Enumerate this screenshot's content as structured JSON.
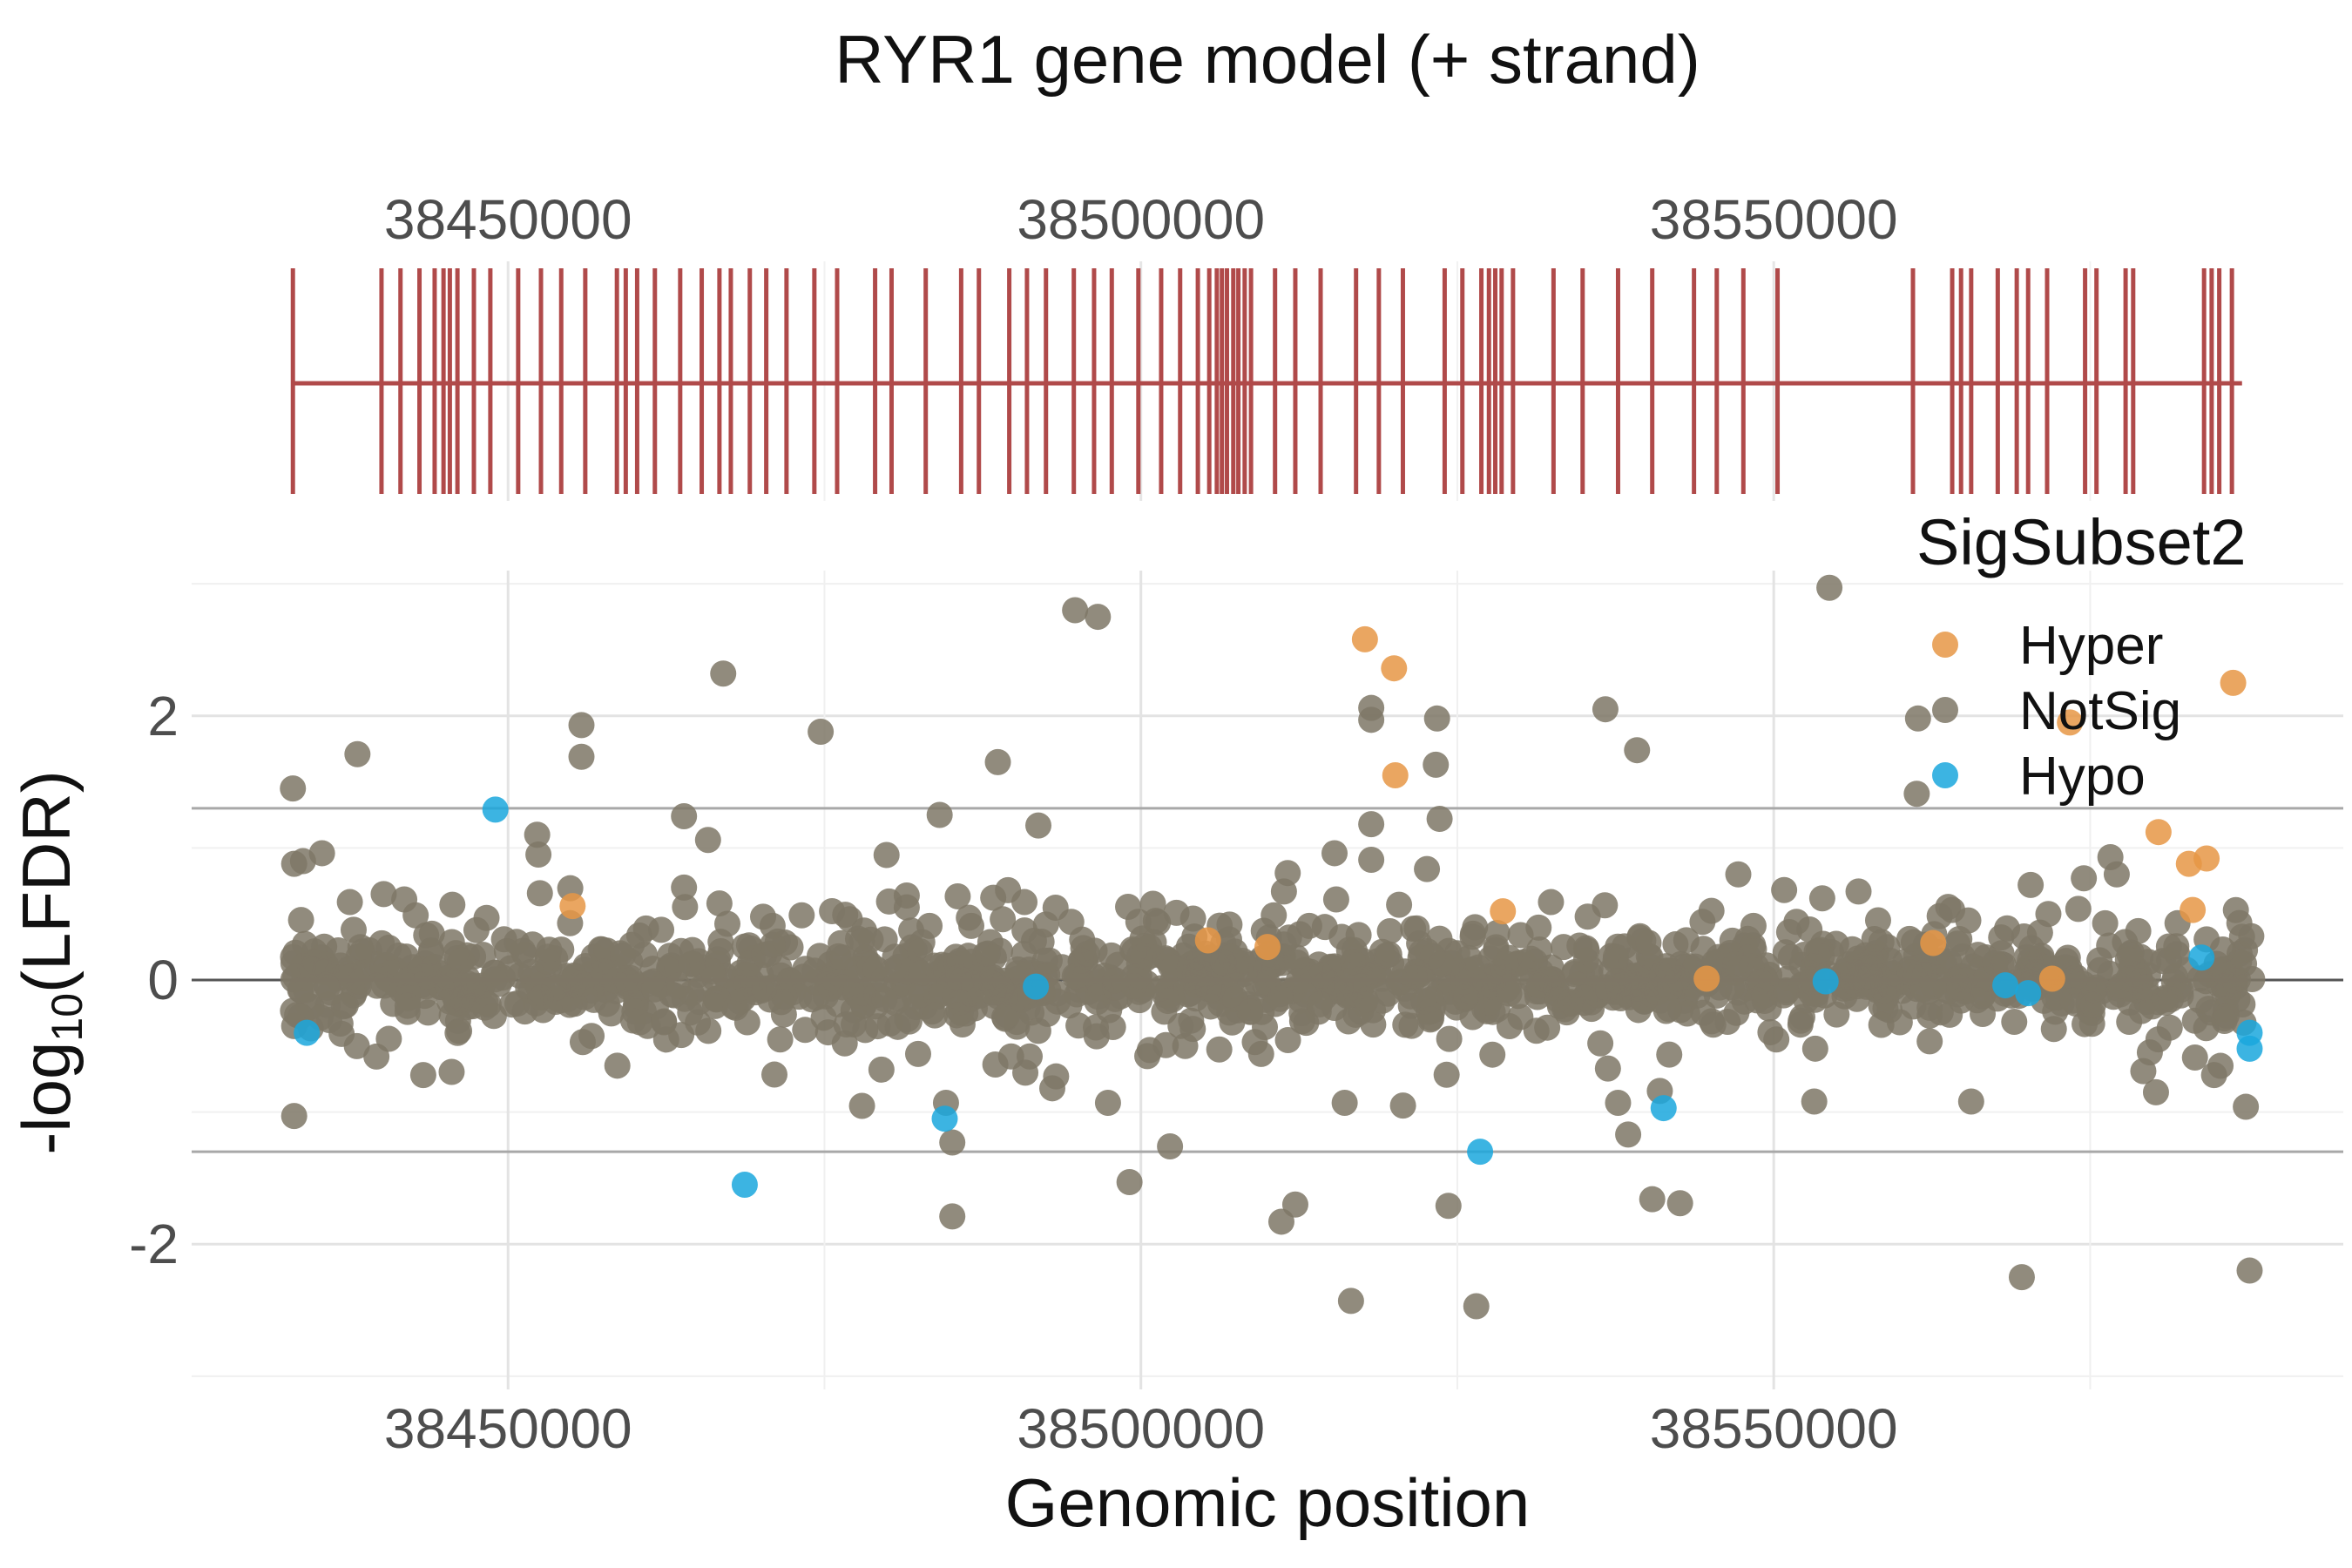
{
  "chart_data": [
    {
      "type": "gene-model",
      "title": "RYR1 gene model (+ strand)",
      "x_tick_labels": [
        "38450000",
        "38500000",
        "38550000"
      ],
      "x_ticks": [
        38450000,
        38500000,
        38550000
      ],
      "xlim": [
        38425000,
        38595000
      ],
      "gene_start": 38433000,
      "gene_end": 38587000,
      "exons": [
        38433000,
        38440000,
        38441500,
        38443000,
        38444200,
        38444900,
        38445400,
        38446000,
        38447300,
        38448600,
        38450800,
        38452600,
        38454200,
        38456100,
        38458600,
        38459300,
        38460200,
        38461600,
        38463600,
        38465300,
        38466700,
        38467600,
        38469100,
        38470400,
        38472000,
        38474200,
        38476000,
        38479000,
        38480300,
        38483000,
        38485800,
        38487200,
        38489600,
        38491000,
        38492500,
        38494700,
        38496300,
        38497700,
        38499800,
        38501600,
        38503100,
        38504500,
        38505400,
        38506000,
        38506400,
        38506800,
        38507300,
        38507700,
        38508200,
        38508700,
        38510600,
        38512200,
        38514200,
        38517000,
        38518800,
        38520700,
        38524000,
        38525400,
        38526900,
        38527500,
        38528000,
        38528500,
        38529400,
        38532600,
        38534900,
        38537700,
        38540400,
        38543700,
        38545500,
        38547600,
        38550300,
        38561000,
        38564100,
        38564800,
        38565600,
        38567700,
        38569200,
        38570100,
        38571600,
        38574600,
        38575500,
        38577800,
        38578400,
        38584000,
        38584600,
        38585200,
        38586200
      ]
    },
    {
      "type": "scatter",
      "xlabel": "Genomic position",
      "ylabel": "-log10(LFDR)",
      "ylabel_main": "-log",
      "ylabel_sub": "10",
      "ylabel_tail": "(LFDR)",
      "x_tick_labels": [
        "38450000",
        "38500000",
        "38550000"
      ],
      "x_ticks": [
        38450000,
        38500000,
        38550000
      ],
      "y_tick_labels": [
        "-2",
        "0",
        "2"
      ],
      "y_ticks": [
        -2,
        0,
        2
      ],
      "xlim": [
        38425000,
        38595000
      ],
      "ylim": [
        -3.1,
        3.1
      ],
      "hlines": [
        1.3,
        -1.3,
        0
      ],
      "grid": true,
      "legend_title": "SigSubset2",
      "legend_position": "top-right",
      "series": [
        {
          "name": "Hyper",
          "color": "#E69645",
          "points": [
            [
              38455100,
              0.56
            ],
            [
              38517700,
              2.58
            ],
            [
              38520000,
              2.36
            ],
            [
              38520100,
              1.55
            ],
            [
              38528600,
              0.52
            ],
            [
              38544700,
              0.01
            ],
            [
              38562600,
              0.28
            ],
            [
              38572000,
              0.01
            ],
            [
              38573400,
              1.95
            ],
            [
              38580400,
              1.12
            ],
            [
              38582800,
              0.88
            ],
            [
              38583100,
              0.53
            ],
            [
              38584200,
              0.92
            ],
            [
              38586300,
              2.25
            ],
            [
              38505300,
              0.3
            ],
            [
              38510000,
              0.25
            ]
          ]
        },
        {
          "name": "Hypo",
          "color": "#1AA7DD",
          "points": [
            [
              38449000,
              1.29
            ],
            [
              38434100,
              -0.4
            ],
            [
              38468700,
              -1.55
            ],
            [
              38484500,
              -1.05
            ],
            [
              38491700,
              -0.05
            ],
            [
              38526800,
              -1.3
            ],
            [
              38541300,
              -0.97
            ],
            [
              38554100,
              -0.01
            ],
            [
              38568300,
              -0.04
            ],
            [
              38570100,
              -0.1
            ],
            [
              38583800,
              0.17
            ],
            [
              38587600,
              -0.4
            ],
            [
              38587600,
              -0.52
            ]
          ]
        },
        {
          "name": "NotSig",
          "color": "#7E7766",
          "points": [
            [
              38433000,
              1.45
            ],
            [
              38433100,
              0.88
            ],
            [
              38433100,
              -1.03
            ],
            [
              38433800,
              0.9
            ],
            [
              38435300,
              0.96
            ],
            [
              38437500,
              0.59
            ],
            [
              38438100,
              1.71
            ],
            [
              38437800,
              0.38
            ],
            [
              38439600,
              -0.58
            ],
            [
              38441800,
              0.61
            ],
            [
              38442700,
              0.49
            ],
            [
              38443300,
              -0.72
            ],
            [
              38445600,
              0.57
            ],
            [
              38448300,
              0.47
            ],
            [
              38451800,
              0.06
            ],
            [
              38452300,
              1.1
            ],
            [
              38452400,
              0.95
            ],
            [
              38455800,
              1.93
            ],
            [
              38455800,
              1.69
            ],
            [
              38454900,
              0.43
            ],
            [
              38455900,
              -0.47
            ],
            [
              38460900,
              0.39
            ],
            [
              38462100,
              0.38
            ],
            [
              38463900,
              0.7
            ],
            [
              38463900,
              1.24
            ],
            [
              38465800,
              1.06
            ],
            [
              38467000,
              2.32
            ],
            [
              38466700,
              0.58
            ],
            [
              38468900,
              -0.32
            ],
            [
              38470900,
              0.41
            ],
            [
              38471500,
              -0.45
            ],
            [
              38473200,
              0.49
            ],
            [
              38474700,
              1.88
            ],
            [
              38476600,
              -0.48
            ],
            [
              38477000,
              0.46
            ],
            [
              38478600,
              0.12
            ],
            [
              38479200,
              -0.35
            ],
            [
              38481500,
              0.64
            ],
            [
              38481500,
              0.55
            ],
            [
              38482400,
              -0.56
            ],
            [
              38483300,
              0.41
            ],
            [
              38484100,
              1.25
            ],
            [
              38484600,
              -0.93
            ],
            [
              38485100,
              -1.23
            ],
            [
              38485100,
              -1.79
            ],
            [
              38486600,
              0.41
            ],
            [
              38487900,
              0.2
            ],
            [
              38488500,
              -0.64
            ],
            [
              38488700,
              1.65
            ],
            [
              38489500,
              0.68
            ],
            [
              38490800,
              0.59
            ],
            [
              38491900,
              1.17
            ],
            [
              38492500,
              0.42
            ],
            [
              38493300,
              -0.73
            ],
            [
              38493000,
              -0.82
            ],
            [
              38494500,
              0.44
            ],
            [
              38494800,
              2.8
            ],
            [
              38496600,
              2.75
            ],
            [
              38497400,
              -0.93
            ],
            [
              38499100,
              -1.53
            ],
            [
              38499800,
              0.44
            ],
            [
              38500700,
              -0.53
            ],
            [
              38502300,
              -1.26
            ],
            [
              38503500,
              -0.5
            ],
            [
              38504100,
              -0.37
            ],
            [
              38505100,
              0.2
            ],
            [
              38507000,
              0.42
            ],
            [
              38509000,
              -0.47
            ],
            [
              38509500,
              -0.56
            ],
            [
              38510500,
              0.49
            ],
            [
              38511300,
              0.67
            ],
            [
              38511600,
              0.81
            ],
            [
              38511100,
              -1.83
            ],
            [
              38512200,
              -1.7
            ],
            [
              38513300,
              0.41
            ],
            [
              38515300,
              0.96
            ],
            [
              38516100,
              -0.93
            ],
            [
              38516600,
              -2.43
            ],
            [
              38518200,
              2.06
            ],
            [
              38518200,
              1.97
            ],
            [
              38518200,
              1.18
            ],
            [
              38518200,
              0.91
            ],
            [
              38520400,
              0.57
            ],
            [
              38522600,
              0.84
            ],
            [
              38523400,
              1.98
            ],
            [
              38523300,
              1.63
            ],
            [
              38523600,
              1.22
            ],
            [
              38524300,
              -1.71
            ],
            [
              38526500,
              -2.47
            ],
            [
              38526400,
              0.4
            ],
            [
              38530000,
              0.34
            ],
            [
              38532400,
              0.59
            ],
            [
              38535300,
              0.48
            ],
            [
              38536700,
              2.05
            ],
            [
              38536300,
              -0.48
            ],
            [
              38536900,
              -0.67
            ],
            [
              38537700,
              -0.93
            ],
            [
              38538500,
              -1.17
            ],
            [
              38539200,
              1.74
            ],
            [
              38539400,
              0.32
            ],
            [
              38540400,
              -1.66
            ],
            [
              38541000,
              -0.84
            ],
            [
              38541700,
              0.07
            ],
            [
              38542600,
              -1.69
            ],
            [
              38545300,
              0.13
            ],
            [
              38547200,
              0.8
            ],
            [
              38548400,
              0.41
            ],
            [
              38551800,
              0.44
            ],
            [
              38553200,
              -0.92
            ],
            [
              38554400,
              2.97
            ],
            [
              38556700,
              0.67
            ],
            [
              38556100,
              0.08
            ],
            [
              38558500,
              -0.34
            ],
            [
              38561300,
              1.41
            ],
            [
              38561400,
              1.98
            ],
            [
              38564100,
              0.53
            ],
            [
              38565600,
              -0.92
            ],
            [
              38567500,
              0.13
            ],
            [
              38569600,
              -2.25
            ],
            [
              38570300,
              0.72
            ],
            [
              38571700,
              0.5
            ],
            [
              38574500,
              0.77
            ],
            [
              38576600,
              0.93
            ],
            [
              38577100,
              0.8
            ],
            [
              38578800,
              0.37
            ],
            [
              38579200,
              -0.69
            ],
            [
              38580200,
              -0.85
            ],
            [
              38581900,
              0.43
            ],
            [
              38585300,
              -0.65
            ],
            [
              38587300,
              -0.96
            ],
            [
              38587600,
              -2.2
            ]
          ]
        }
      ],
      "band_seed": 7,
      "band_count": 1350
    }
  ]
}
